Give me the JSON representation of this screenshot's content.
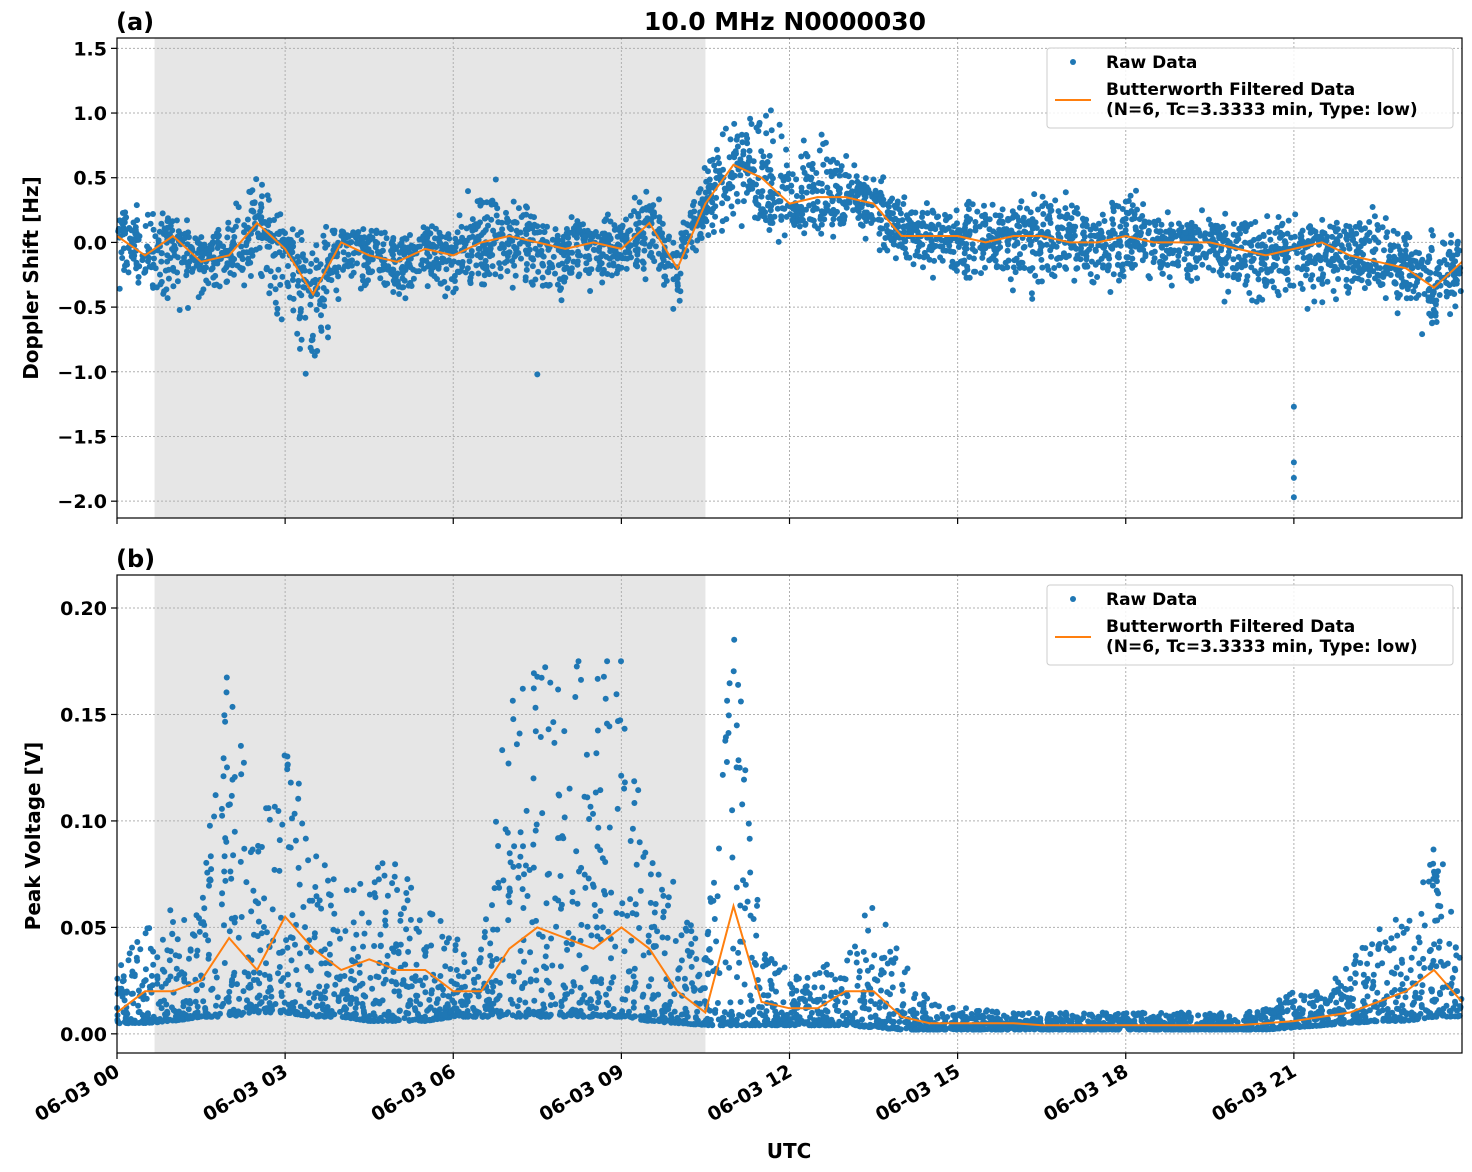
{
  "chart_data": [
    {
      "type": "scatter",
      "panel_label": "(a)",
      "title": "10.0 MHz N0000030",
      "xlabel": "",
      "ylabel": "Doppler Shift [Hz]",
      "ylim": [
        -2.13,
        1.58
      ],
      "yticks": [
        -2.0,
        -1.5,
        -1.0,
        -0.5,
        0.0,
        0.5,
        1.0,
        1.5
      ],
      "ytick_labels": [
        "−2.0",
        "−1.5",
        "−1.0",
        "−0.5",
        "0.0",
        "0.5",
        "1.0",
        "1.5"
      ],
      "grid": true,
      "legend_placement": "top-right",
      "shaded_interval_hours": [
        0.67,
        10.5
      ],
      "x_hours": [
        0,
        0.5,
        1,
        1.5,
        2,
        2.5,
        3,
        3.5,
        4,
        4.5,
        5,
        5.5,
        6,
        6.5,
        7,
        7.5,
        8,
        8.5,
        9,
        9.5,
        10,
        10.5,
        11,
        11.5,
        12,
        12.5,
        13,
        13.5,
        14,
        14.5,
        15,
        15.5,
        16,
        16.5,
        17,
        17.5,
        18,
        18.5,
        19,
        19.5,
        20,
        20.5,
        21,
        21.5,
        22,
        22.5,
        23,
        23.5,
        24
      ],
      "series": [
        {
          "name": "Raw Data",
          "kind": "points",
          "upper": [
            0.3,
            0.45,
            0.25,
            0.2,
            0.3,
            0.7,
            0.2,
            0.15,
            0.2,
            0.15,
            0.2,
            0.2,
            0.2,
            0.7,
            0.45,
            0.3,
            0.3,
            0.25,
            0.35,
            0.5,
            0.3,
            0.65,
            1.1,
            1.35,
            1.0,
            1.1,
            0.75,
            0.6,
            0.45,
            0.35,
            0.3,
            0.6,
            0.4,
            0.65,
            0.45,
            0.35,
            0.6,
            0.3,
            0.25,
            0.3,
            0.3,
            0.25,
            0.3,
            0.2,
            0.25,
            0.45,
            0.2,
            0.15,
            0.2
          ],
          "lower": [
            -0.5,
            -0.4,
            -0.7,
            -0.5,
            -0.5,
            -0.3,
            -0.9,
            -1.45,
            -0.5,
            -0.55,
            -0.7,
            -0.5,
            -0.6,
            -0.5,
            -0.5,
            -0.55,
            -0.7,
            -0.5,
            -0.4,
            -0.4,
            -0.6,
            -0.05,
            -0.05,
            -0.05,
            -0.05,
            -0.05,
            -0.05,
            -0.1,
            -0.3,
            -0.35,
            -0.4,
            -0.4,
            -0.55,
            -0.5,
            -0.5,
            -0.5,
            -0.45,
            -0.4,
            -0.5,
            -0.5,
            -0.55,
            -0.6,
            -0.7,
            -0.55,
            -0.5,
            -0.5,
            -0.6,
            -0.85,
            -0.6
          ],
          "outliers": [
            [
              7.5,
              -1.02
            ],
            [
              21.0,
              -1.27
            ],
            [
              21.0,
              -1.7
            ],
            [
              21.0,
              -1.82
            ],
            [
              21.0,
              -1.97
            ]
          ]
        },
        {
          "name": "Butterworth Filtered Data\n(N=6, Tc=3.3333 min, Type: low)",
          "kind": "line",
          "values": [
            0.05,
            -0.1,
            0.05,
            -0.15,
            -0.1,
            0.15,
            -0.05,
            -0.4,
            0.0,
            -0.1,
            -0.15,
            -0.05,
            -0.1,
            0.0,
            0.05,
            0.0,
            -0.05,
            0.0,
            -0.05,
            0.15,
            -0.2,
            0.3,
            0.6,
            0.5,
            0.3,
            0.35,
            0.35,
            0.3,
            0.05,
            0.05,
            0.05,
            0.0,
            0.05,
            0.05,
            0.0,
            0.0,
            0.05,
            0.0,
            0.0,
            0.0,
            -0.05,
            -0.1,
            -0.05,
            0.0,
            -0.1,
            -0.15,
            -0.2,
            -0.35,
            -0.15
          ]
        }
      ],
      "legend": [
        "Raw Data",
        "Butterworth Filtered Data",
        "(N=6, Tc=3.3333 min, Type: low)"
      ]
    },
    {
      "type": "scatter",
      "panel_label": "(b)",
      "xlabel": "UTC",
      "ylabel": "Peak Voltage [V]",
      "ylim": [
        -0.009,
        0.2155
      ],
      "yticks": [
        0.0,
        0.05,
        0.1,
        0.15,
        0.2
      ],
      "ytick_labels": [
        "0.00",
        "0.05",
        "0.10",
        "0.15",
        "0.20"
      ],
      "grid": true,
      "legend_placement": "top-right",
      "shaded_interval_hours": [
        0.67,
        10.5
      ],
      "xticks_hours": [
        0,
        3,
        6,
        9,
        12,
        15,
        18,
        21
      ],
      "xtick_labels": [
        "06-03 00",
        "06-03 03",
        "06-03 06",
        "06-03 09",
        "06-03 12",
        "06-03 15",
        "06-03 18",
        "06-03 21"
      ],
      "x_hours": [
        0,
        0.5,
        1,
        1.5,
        2,
        2.5,
        3,
        3.5,
        4,
        4.5,
        5,
        5.5,
        6,
        6.5,
        7,
        7.5,
        8,
        8.5,
        9,
        9.5,
        10,
        10.5,
        11,
        11.5,
        12,
        12.5,
        13,
        13.5,
        14,
        14.5,
        15,
        15.5,
        16,
        16.5,
        17,
        17.5,
        18,
        18.5,
        19,
        19.5,
        20,
        20.5,
        21,
        21.5,
        22,
        22.5,
        23,
        23.5,
        24
      ],
      "series": [
        {
          "name": "Raw Data",
          "kind": "points",
          "upper": [
            0.03,
            0.05,
            0.06,
            0.06,
            0.18,
            0.09,
            0.14,
            0.1,
            0.07,
            0.09,
            0.08,
            0.06,
            0.05,
            0.04,
            0.165,
            0.18,
            0.18,
            0.18,
            0.19,
            0.09,
            0.07,
            0.04,
            0.205,
            0.04,
            0.03,
            0.03,
            0.04,
            0.065,
            0.04,
            0.015,
            0.012,
            0.012,
            0.01,
            0.01,
            0.01,
            0.01,
            0.01,
            0.01,
            0.01,
            0.01,
            0.01,
            0.012,
            0.02,
            0.02,
            0.035,
            0.05,
            0.06,
            0.11,
            0.04
          ],
          "lower": [
            0.005,
            0.005,
            0.006,
            0.008,
            0.008,
            0.01,
            0.01,
            0.008,
            0.008,
            0.006,
            0.006,
            0.006,
            0.008,
            0.008,
            0.008,
            0.008,
            0.008,
            0.008,
            0.008,
            0.006,
            0.005,
            0.004,
            0.004,
            0.004,
            0.004,
            0.004,
            0.004,
            0.003,
            0.002,
            0.002,
            0.002,
            0.002,
            0.002,
            0.002,
            0.002,
            0.002,
            0.002,
            0.002,
            0.002,
            0.002,
            0.002,
            0.002,
            0.003,
            0.004,
            0.005,
            0.006,
            0.006,
            0.008,
            0.008
          ],
          "outliers": []
        },
        {
          "name": "Butterworth Filtered Data\n(N=6, Tc=3.3333 min, Type: low)",
          "kind": "line",
          "values": [
            0.01,
            0.02,
            0.02,
            0.025,
            0.045,
            0.03,
            0.055,
            0.04,
            0.03,
            0.035,
            0.03,
            0.03,
            0.02,
            0.02,
            0.04,
            0.05,
            0.045,
            0.04,
            0.05,
            0.04,
            0.02,
            0.01,
            0.06,
            0.015,
            0.012,
            0.012,
            0.02,
            0.02,
            0.008,
            0.005,
            0.005,
            0.005,
            0.005,
            0.004,
            0.004,
            0.004,
            0.004,
            0.004,
            0.004,
            0.004,
            0.004,
            0.005,
            0.006,
            0.008,
            0.01,
            0.015,
            0.02,
            0.03,
            0.015
          ]
        }
      ],
      "legend": [
        "Raw Data",
        "Butterworth Filtered Data",
        "(N=6, Tc=3.3333 min, Type: low)"
      ]
    }
  ],
  "colors": {
    "raw": "#1f77b4",
    "filtered": "#ff7f0e",
    "shade": "#e6e6e6"
  }
}
